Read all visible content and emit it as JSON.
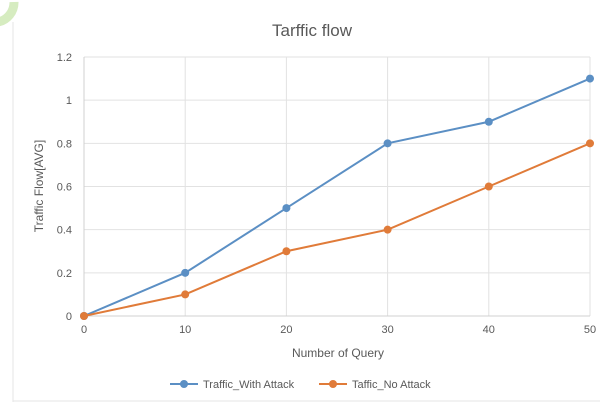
{
  "chart_data": {
    "type": "line",
    "title": "Tarffic flow",
    "xlabel": "Number of Query",
    "ylabel": "Traffic Flow[AVG]",
    "x": [
      0,
      10,
      20,
      30,
      40,
      50
    ],
    "xlim": [
      0,
      50
    ],
    "ylim": [
      0,
      1.2
    ],
    "yticks": [
      "0",
      "0.2",
      "0.4",
      "0.6",
      "0.8",
      "1",
      "1.2"
    ],
    "xticks": [
      "0",
      "10",
      "20",
      "30",
      "40",
      "50"
    ],
    "grid": true,
    "legend_position": "bottom",
    "series": [
      {
        "name": "Traffic_With Attack",
        "color": "#5b8fc4",
        "values": [
          0,
          0.2,
          0.5,
          0.8,
          0.9,
          1.1
        ]
      },
      {
        "name": "Taffic_No Attack",
        "color": "#e07b39",
        "values": [
          0,
          0.1,
          0.3,
          0.4,
          0.6,
          0.8
        ]
      }
    ]
  }
}
